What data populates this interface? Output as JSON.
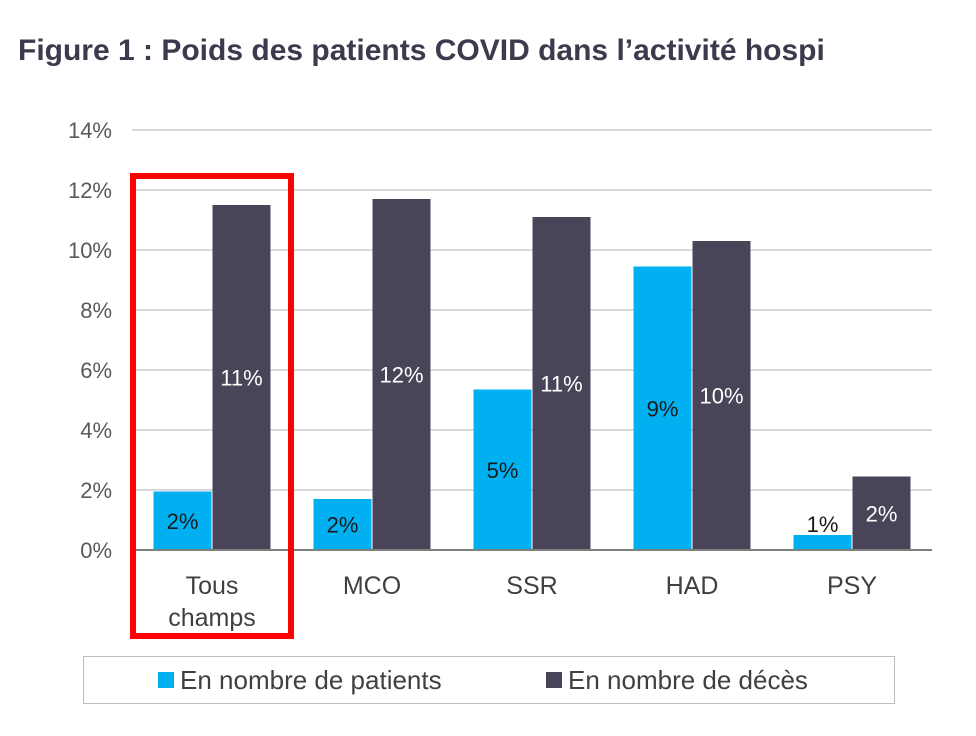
{
  "title": "Figure 1 : Poids des patients COVID dans l’activité hospi",
  "chart_data": {
    "type": "bar",
    "categories": [
      "Tous champs",
      "MCO",
      "SSR",
      "HAD",
      "PSY"
    ],
    "category_lines": [
      [
        "Tous",
        "champs"
      ],
      [
        "MCO"
      ],
      [
        "SSR"
      ],
      [
        "HAD"
      ],
      [
        "PSY"
      ]
    ],
    "series": [
      {
        "name": "En nombre de patients",
        "color": "#00b0f0",
        "values": [
          1.95,
          1.7,
          5.35,
          9.45,
          0.5
        ],
        "labels": [
          "2%",
          "2%",
          "5%",
          "9%",
          "1%"
        ],
        "label_color": "#1a1a1a"
      },
      {
        "name": "En nombre de décès",
        "color": "#4a4458",
        "values": [
          11.5,
          11.7,
          11.1,
          10.3,
          2.45
        ],
        "labels": [
          "11%",
          "12%",
          "11%",
          "10%",
          "2%"
        ],
        "label_color": "#ffffff"
      }
    ],
    "ylim": [
      0,
      14
    ],
    "yticks": [
      0,
      2,
      4,
      6,
      8,
      10,
      12,
      14
    ],
    "ytick_labels": [
      "0%",
      "2%",
      "4%",
      "6%",
      "8%",
      "10%",
      "12%",
      "14%"
    ],
    "grid": true,
    "legend_position": "bottom",
    "highlighted_category": "Tous champs",
    "highlight_color": "#ff0000"
  }
}
